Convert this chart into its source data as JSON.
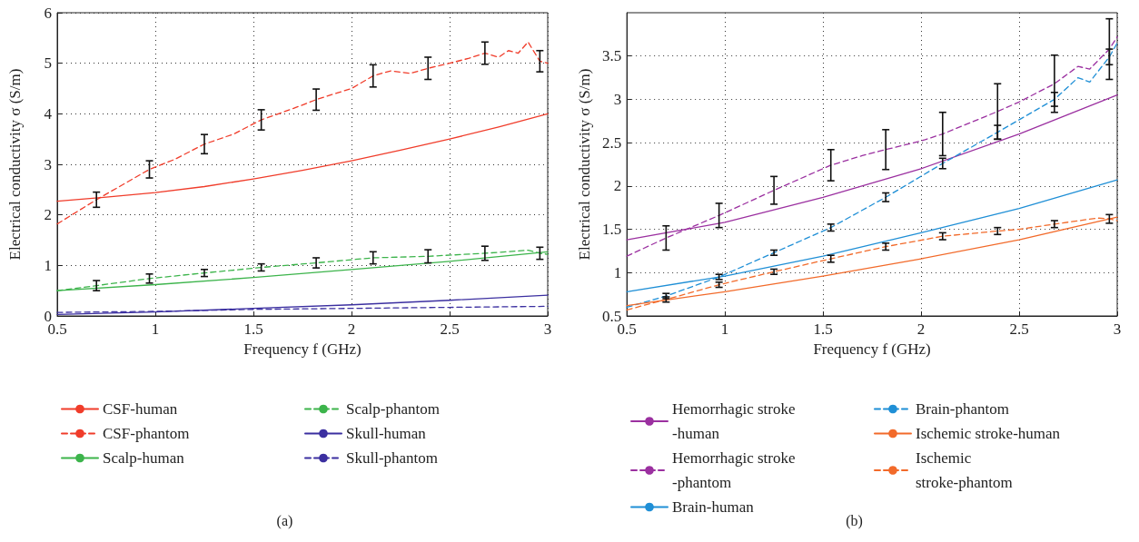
{
  "chart_data": [
    {
      "type": "line",
      "xlabel": "Frequency f (GHz)",
      "ylabel": "Electrical conductivity σ (S/m)",
      "annotations": [
        "(a)"
      ],
      "xlim": [
        0.5,
        3
      ],
      "xticks": [
        0.5,
        1,
        1.5,
        2,
        2.5,
        3
      ],
      "ylim": [
        0,
        6
      ],
      "yticks": [
        0,
        1,
        2,
        3,
        4,
        5,
        6
      ],
      "grid": true,
      "legend": "bottom",
      "marker": "none",
      "series": [
        {
          "name": "CSF-human",
          "color": "#f03c2a",
          "line_style": "solid",
          "x": [
            0.5,
            0.75,
            1,
            1.25,
            1.5,
            1.75,
            2,
            2.25,
            2.5,
            2.75,
            3
          ],
          "values": [
            2.27,
            2.35,
            2.44,
            2.56,
            2.71,
            2.88,
            3.07,
            3.28,
            3.5,
            3.74,
            4.0
          ]
        },
        {
          "name": "CSF-phantom",
          "color": "#f03c2a",
          "line_style": "dashed",
          "x": [
            0.5,
            0.7,
            0.97,
            1.1,
            1.25,
            1.4,
            1.54,
            1.7,
            1.82,
            1.9,
            2.0,
            2.11,
            2.2,
            2.3,
            2.39,
            2.5,
            2.6,
            2.68,
            2.75,
            2.8,
            2.85,
            2.9,
            2.96,
            3.0
          ],
          "values": [
            1.82,
            2.3,
            2.9,
            3.1,
            3.4,
            3.6,
            3.88,
            4.1,
            4.28,
            4.38,
            4.5,
            4.75,
            4.85,
            4.8,
            4.9,
            5.0,
            5.1,
            5.2,
            5.12,
            5.25,
            5.2,
            5.42,
            5.04,
            5.0
          ],
          "errors": [
            null,
            0.15,
            0.17,
            null,
            0.19,
            null,
            0.2,
            null,
            0.21,
            null,
            null,
            0.22,
            null,
            null,
            0.22,
            null,
            null,
            0.22,
            null,
            null,
            null,
            null,
            0.21,
            null
          ]
        },
        {
          "name": "Scalp-human",
          "color": "#3cb44b",
          "line_style": "solid",
          "x": [
            0.5,
            1,
            1.5,
            2,
            2.5,
            3
          ],
          "values": [
            0.5,
            0.62,
            0.76,
            0.92,
            1.08,
            1.27
          ]
        },
        {
          "name": "Scalp-phantom",
          "color": "#3cb44b",
          "line_style": "dashed",
          "x": [
            0.5,
            0.7,
            0.97,
            1.25,
            1.54,
            1.82,
            2.11,
            2.39,
            2.68,
            2.9,
            2.96,
            3.0
          ],
          "values": [
            0.5,
            0.6,
            0.74,
            0.85,
            0.96,
            1.05,
            1.15,
            1.18,
            1.24,
            1.3,
            1.24,
            1.22
          ],
          "errors": [
            null,
            0.1,
            0.09,
            0.07,
            0.07,
            0.1,
            0.12,
            0.13,
            0.14,
            null,
            0.12,
            null
          ]
        },
        {
          "name": "Skull-human",
          "color": "#3b2fa0",
          "line_style": "solid",
          "x": [
            0.5,
            1,
            1.5,
            2,
            2.5,
            3
          ],
          "values": [
            0.03,
            0.08,
            0.15,
            0.22,
            0.31,
            0.41
          ]
        },
        {
          "name": "Skull-phantom",
          "color": "#3b2fa0",
          "line_style": "dashed",
          "x": [
            0.5,
            1,
            1.5,
            2,
            2.5,
            3
          ],
          "values": [
            0.07,
            0.09,
            0.13,
            0.15,
            0.17,
            0.19
          ]
        }
      ]
    },
    {
      "type": "line",
      "xlabel": "Frequency f (GHz)",
      "ylabel": "Electrical conductivity σ (S/m)",
      "annotations": [
        "(b)"
      ],
      "xlim": [
        0.5,
        3
      ],
      "xticks": [
        0.5,
        1,
        1.5,
        2,
        2.5,
        3
      ],
      "ylim": [
        0.5,
        4
      ],
      "yticks": [
        0.5,
        1,
        1.5,
        2,
        2.5,
        3,
        3.5
      ],
      "grid": true,
      "legend": "bottom",
      "marker": "none",
      "series": [
        {
          "name": "Hemorrhagic stroke -human",
          "color": "#9b30a0",
          "line_style": "solid",
          "x": [
            0.5,
            1,
            1.5,
            2,
            2.5,
            3
          ],
          "values": [
            1.38,
            1.58,
            1.87,
            2.2,
            2.6,
            3.05
          ]
        },
        {
          "name": "Hemorrhagic stroke -phantom",
          "color": "#9b30a0",
          "line_style": "dashed",
          "x": [
            0.5,
            0.7,
            0.97,
            1.25,
            1.54,
            1.7,
            1.82,
            2.0,
            2.11,
            2.39,
            2.5,
            2.68,
            2.8,
            2.86,
            2.96,
            3.0
          ],
          "values": [
            1.19,
            1.4,
            1.66,
            1.95,
            2.24,
            2.35,
            2.42,
            2.52,
            2.6,
            2.86,
            2.97,
            3.18,
            3.38,
            3.35,
            3.58,
            3.72
          ],
          "errors": [
            null,
            0.14,
            0.14,
            0.16,
            0.18,
            null,
            0.23,
            null,
            0.25,
            0.32,
            null,
            0.33,
            null,
            null,
            0.35,
            null
          ]
        },
        {
          "name": "Brain-human",
          "color": "#1f8fd6",
          "line_style": "solid",
          "x": [
            0.5,
            1,
            1.5,
            2,
            2.5,
            3
          ],
          "values": [
            0.78,
            0.96,
            1.19,
            1.46,
            1.74,
            2.07
          ]
        },
        {
          "name": "Brain-phantom",
          "color": "#1f8fd6",
          "line_style": "dashed",
          "x": [
            0.5,
            0.7,
            0.97,
            1.25,
            1.54,
            1.82,
            2.11,
            2.39,
            2.68,
            2.8,
            2.86,
            2.96,
            3.0
          ],
          "values": [
            0.6,
            0.73,
            0.95,
            1.23,
            1.52,
            1.87,
            2.26,
            2.62,
            3.0,
            3.25,
            3.2,
            3.49,
            3.65
          ],
          "errors": [
            null,
            0.03,
            0.03,
            0.03,
            0.04,
            0.05,
            0.06,
            0.08,
            0.08,
            null,
            null,
            0.09,
            null
          ]
        },
        {
          "name": "Ischemic stroke-human",
          "color": "#f26a2a",
          "line_style": "solid",
          "x": [
            0.5,
            1,
            1.5,
            2,
            2.5,
            3
          ],
          "values": [
            0.62,
            0.78,
            0.96,
            1.16,
            1.38,
            1.64
          ]
        },
        {
          "name": "Ischemic stroke-phantom",
          "color": "#f26a2a",
          "line_style": "dashed",
          "x": [
            0.5,
            0.7,
            0.97,
            1.25,
            1.54,
            1.82,
            2.11,
            2.39,
            2.5,
            2.68,
            2.9,
            2.96,
            3.0
          ],
          "values": [
            0.57,
            0.69,
            0.86,
            1.01,
            1.16,
            1.3,
            1.42,
            1.48,
            1.5,
            1.56,
            1.63,
            1.62,
            1.6
          ],
          "errors": [
            null,
            0.03,
            0.03,
            0.03,
            0.04,
            0.04,
            0.04,
            0.04,
            null,
            0.04,
            null,
            0.05,
            null
          ]
        }
      ]
    }
  ]
}
